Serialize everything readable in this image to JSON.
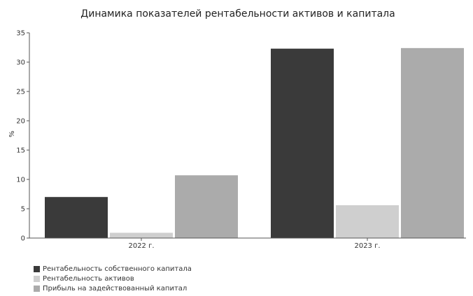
{
  "chart_data": {
    "type": "bar",
    "title": "Динамика показателей рентабельности активов и капитала",
    "ylabel": "%",
    "xlabel": "",
    "categories": [
      "2022 г.",
      "2023 г."
    ],
    "ylim": [
      0,
      35
    ],
    "yticks": [
      0,
      5,
      10,
      15,
      20,
      25,
      30,
      35
    ],
    "grid": false,
    "legend_position": "bottom-left",
    "series": [
      {
        "name": "Рентабельность собственного капитала",
        "color": "#3a3a3a",
        "values": [
          7.0,
          32.3
        ]
      },
      {
        "name": "Рентабельность активов",
        "color": "#cfcfcf",
        "values": [
          0.9,
          5.6
        ]
      },
      {
        "name": "Прибыль на задействованный капитал",
        "color": "#ababab",
        "values": [
          10.7,
          32.4
        ]
      }
    ]
  }
}
